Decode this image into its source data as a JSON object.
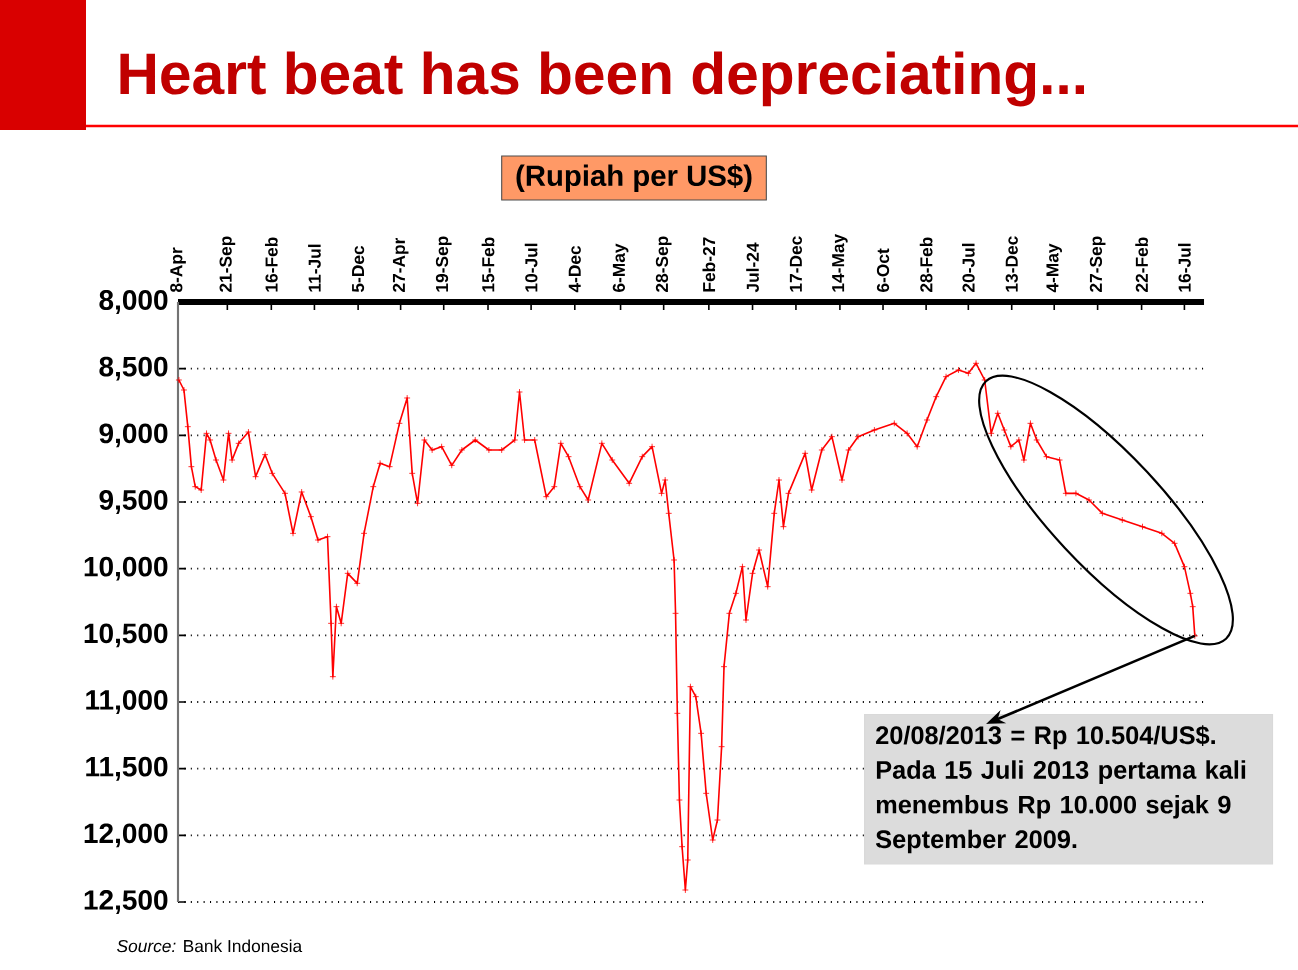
{
  "chart_data": {
    "type": "line",
    "title": "Heart beat has been depreciating...",
    "subtitle": "(Rupiah per US$)",
    "color": "#ff0000",
    "marker": "cross",
    "line_style": "solid",
    "grid": "y",
    "x": [
      "2004-04-11",
      "2004-04-28",
      "2004-05-11",
      "2004-05-23",
      "2004-06-05",
      "2004-06-25",
      "2004-07-13",
      "2004-07-25",
      "2004-08-14",
      "2004-09-08",
      "2004-09-25",
      "2004-10-07",
      "2004-10-29",
      "2004-12-01",
      "2004-12-25",
      "2005-01-26",
      "2005-02-19",
      "2005-04-03",
      "2005-04-30",
      "2005-05-29",
      "2005-06-29",
      "2005-07-23",
      "2005-08-24",
      "2005-09-05",
      "2005-09-11",
      "2005-09-23",
      "2005-10-09",
      "2005-10-31",
      "2005-12-02",
      "2005-12-25",
      "2006-01-25",
      "2006-02-17",
      "2006-03-21",
      "2006-04-23",
      "2006-05-19",
      "2006-06-05",
      "2006-06-23",
      "2006-07-16",
      "2006-08-11",
      "2006-09-12",
      "2006-10-16",
      "2006-11-19",
      "2007-01-03",
      "2007-02-18",
      "2007-04-02",
      "2007-05-16",
      "2007-06-01",
      "2007-06-18",
      "2007-07-22",
      "2007-08-30",
      "2007-09-26",
      "2007-10-18",
      "2007-11-13",
      "2007-12-21",
      "2008-01-18",
      "2008-03-04",
      "2008-04-08",
      "2008-06-04",
      "2008-07-18",
      "2008-08-20",
      "2008-09-21",
      "2008-10-03",
      "2008-10-15",
      "2008-11-02",
      "2008-11-07",
      "2008-11-13",
      "2008-11-20",
      "2008-11-29",
      "2008-12-10",
      "2008-12-18",
      "2008-12-27",
      "2009-01-14",
      "2009-02-01",
      "2009-02-18",
      "2009-03-12",
      "2009-03-28",
      "2009-04-11",
      "2009-04-19",
      "2009-05-07",
      "2009-05-29",
      "2009-06-20",
      "2009-07-02",
      "2009-07-24",
      "2009-08-15",
      "2009-09-13",
      "2009-10-05",
      "2009-10-21",
      "2009-11-05",
      "2009-11-22",
      "2010-01-17",
      "2010-02-08",
      "2010-03-14",
      "2010-04-17",
      "2010-05-21",
      "2010-06-12",
      "2010-07-14",
      "2010-09-07",
      "2010-11-13",
      "2010-12-26",
      "2011-01-29",
      "2011-03-03",
      "2011-04-03",
      "2011-05-06",
      "2011-06-17",
      "2011-07-20",
      "2011-08-15",
      "2011-09-13",
      "2011-10-05",
      "2011-10-27",
      "2011-11-18",
      "2011-12-10",
      "2012-01-06",
      "2012-01-23",
      "2012-02-14",
      "2012-03-06",
      "2012-04-08",
      "2012-05-22",
      "2012-06-12",
      "2012-07-16",
      "2012-08-29",
      "2012-10-13",
      "2012-12-19",
      "2013-02-25",
      "2013-05-01",
      "2013-06-13",
      "2013-07-16",
      "2013-08-05",
      "2013-08-13",
      "2013-08-20"
    ],
    "values": [
      8585,
      8660,
      8935,
      9235,
      9385,
      9410,
      8985,
      9035,
      9185,
      9335,
      8985,
      9185,
      9060,
      8975,
      9310,
      9145,
      9285,
      9435,
      9735,
      9425,
      9610,
      9785,
      9760,
      10410,
      10810,
      10285,
      10410,
      10035,
      10110,
      9735,
      9385,
      9210,
      9235,
      8910,
      8720,
      9285,
      9510,
      9035,
      9110,
      9085,
      9225,
      9110,
      9035,
      9110,
      9110,
      9035,
      8675,
      9035,
      9035,
      9460,
      9385,
      9060,
      9160,
      9385,
      9485,
      9060,
      9185,
      9360,
      9160,
      9085,
      9435,
      9335,
      9585,
      9935,
      10335,
      11085,
      11735,
      12085,
      12410,
      12185,
      10885,
      10960,
      11235,
      11685,
      12035,
      11885,
      11335,
      10735,
      10335,
      10185,
      9985,
      10385,
      10035,
      9860,
      10135,
      9585,
      9335,
      9685,
      9435,
      9135,
      9410,
      9110,
      9010,
      9335,
      9110,
      9010,
      8960,
      8910,
      8985,
      9085,
      8885,
      8710,
      8560,
      8510,
      8535,
      8460,
      8585,
      8985,
      8835,
      8960,
      9085,
      9035,
      9185,
      8910,
      9035,
      9160,
      9185,
      9435,
      9435,
      9485,
      9585,
      9635,
      9685,
      9735,
      9810,
      9985,
      10185,
      10285,
      10504
    ],
    "xlim": [
      "2004-04-08",
      "2013-09-20"
    ],
    "xticks": [
      {
        "value": "2004-04-08",
        "label": "8-Apr"
      },
      {
        "value": "2004-09-21",
        "label": "21-Sep"
      },
      {
        "value": "2005-02-16",
        "label": "16-Feb"
      },
      {
        "value": "2005-07-11",
        "label": "11-Jul"
      },
      {
        "value": "2005-12-05",
        "label": "5-Dec"
      },
      {
        "value": "2006-04-27",
        "label": "27-Apr"
      },
      {
        "value": "2006-09-19",
        "label": "19-Sep"
      },
      {
        "value": "2007-02-15",
        "label": "15-Feb"
      },
      {
        "value": "2007-07-10",
        "label": "10-Jul"
      },
      {
        "value": "2007-12-04",
        "label": "4-Dec"
      },
      {
        "value": "2008-05-06",
        "label": "6-May"
      },
      {
        "value": "2008-09-28",
        "label": "28-Sep"
      },
      {
        "value": "2009-02-27",
        "label": "Feb-27"
      },
      {
        "value": "2009-07-24",
        "label": "Jul-24"
      },
      {
        "value": "2009-12-17",
        "label": "17-Dec"
      },
      {
        "value": "2010-05-14",
        "label": "14-May"
      },
      {
        "value": "2010-10-06",
        "label": "6-Oct"
      },
      {
        "value": "2011-02-28",
        "label": "28-Feb"
      },
      {
        "value": "2011-07-20",
        "label": "20-Jul"
      },
      {
        "value": "2011-12-13",
        "label": "13-Dec"
      },
      {
        "value": "2012-05-04",
        "label": "4-May"
      },
      {
        "value": "2012-09-27",
        "label": "27-Sep"
      },
      {
        "value": "2013-02-22",
        "label": "22-Feb"
      },
      {
        "value": "2013-07-16",
        "label": "16-Jul"
      }
    ],
    "ylim": [
      12500,
      8000
    ],
    "yticks": [
      {
        "value": 8000,
        "label": "8,000"
      },
      {
        "value": 8500,
        "label": "8,500"
      },
      {
        "value": 9000,
        "label": "9,000"
      },
      {
        "value": 9500,
        "label": "9,500"
      },
      {
        "value": 10000,
        "label": "10,000"
      },
      {
        "value": 10500,
        "label": "10,500"
      },
      {
        "value": 11000,
        "label": "11,000"
      },
      {
        "value": 11500,
        "label": "11,500"
      },
      {
        "value": 12000,
        "label": "12,000"
      },
      {
        "value": 12500,
        "label": "12,500"
      }
    ],
    "annotations": [
      {
        "text": "20/08/2013 = Rp 10.504/US$. Pada 15 Juli 2013 pertama kali menembus Rp 10.000 sejak 9 September 2009.",
        "x": "2013-08-20",
        "y": 10504
      },
      "*Source:* Bank Indonesia"
    ]
  }
}
